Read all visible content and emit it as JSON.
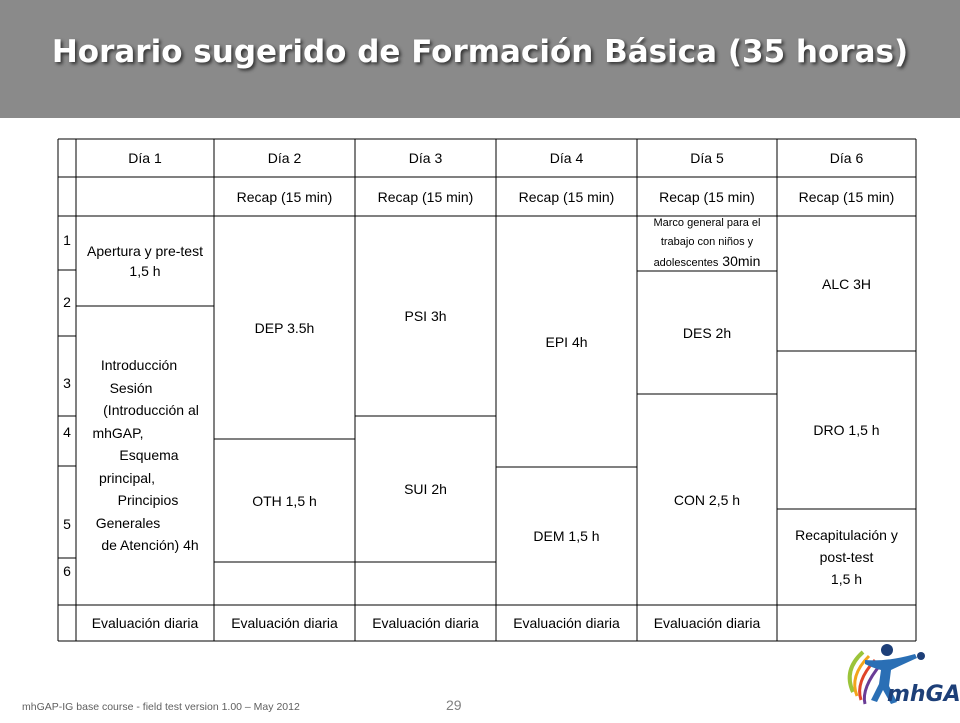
{
  "title": "Horario sugerido de Formación Básica (35 horas)",
  "table": {
    "days": [
      "Día 1",
      "Día 2",
      "Día 3",
      "Día 4",
      "Día 5",
      "Día 6"
    ],
    "recap": "Recap (15 min)",
    "rows": [
      "1",
      "2",
      "3",
      "4",
      "5",
      "6"
    ],
    "apertura": "Apertura y pre-test 1,5 h",
    "introduccion": [
      "Introducción",
      "Sesión",
      "(Introducción al",
      "mhGAP,",
      "Esquema",
      "principal,",
      "Principios",
      "Generales",
      "de Atención) 4h"
    ],
    "dep": "DEP 3.5h",
    "oth": "OTH 1,5 h",
    "psi": "PSI 3h",
    "sui": "SUI 2h",
    "epi": "EPI 4h",
    "dem": "DEM 1,5 h",
    "marco": [
      "Marco general para el",
      "trabajo con niños y",
      "adolescentes"
    ],
    "marco_time": "30min",
    "des": "DES 2h",
    "con": "CON 2,5 h",
    "alc": "ALC 3H",
    "dro": "DRO 1,5 h",
    "recapitulacion": [
      "Recapitulación y",
      "post-test",
      "1,5 h"
    ],
    "evaluacion": "Evaluación diaria"
  },
  "footer": "mhGAP-IG base course -  field test version 1.00 – May 2012",
  "page_number": "29",
  "logo_text": "mhGAP",
  "colors": {
    "header_bg": "#8a8a8a",
    "logo_blue": "#2a6fb5",
    "logo_dark": "#1d3f78"
  }
}
